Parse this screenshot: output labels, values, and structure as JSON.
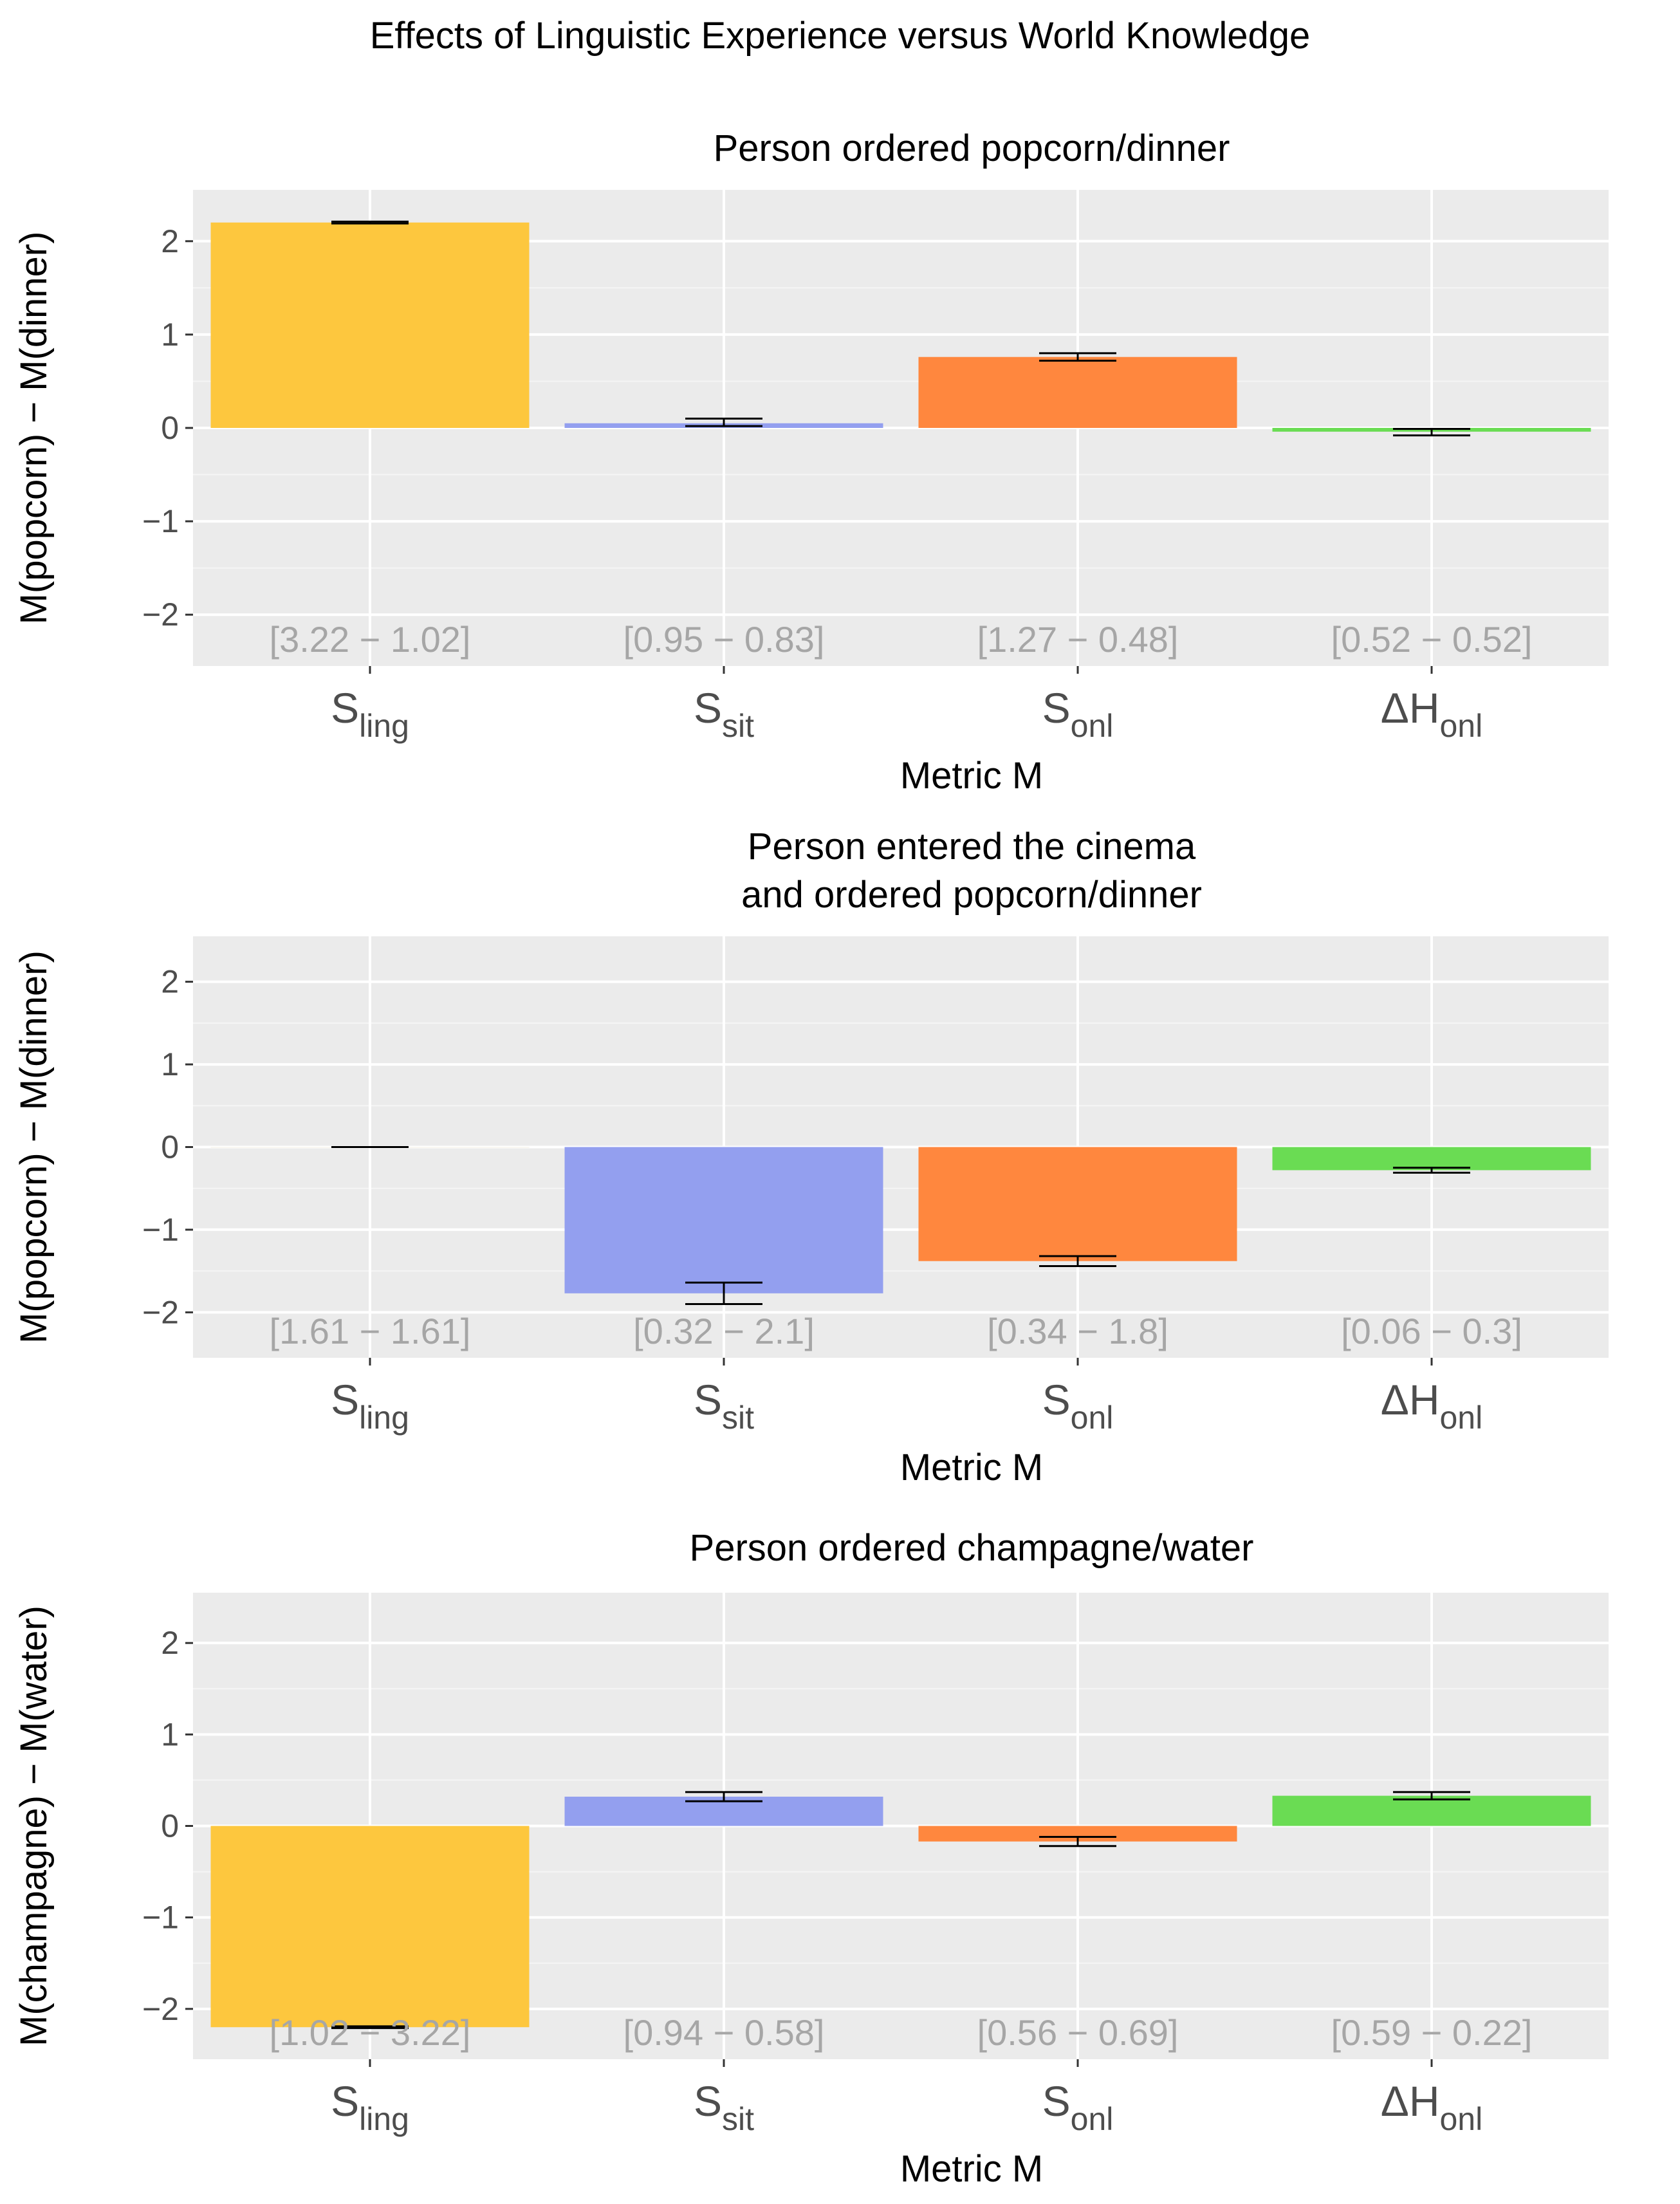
{
  "figure_title": "Effects of Linguistic Experience versus World Knowledge",
  "chart_data": [
    {
      "type": "bar",
      "title": "Person ordered popcorn/dinner",
      "title_lines": [
        "Person ordered popcorn/dinner"
      ],
      "ylabel": "M(popcorn) − M(dinner)",
      "xlabel": "Metric M",
      "ylim": [
        -2.55,
        2.55
      ],
      "yticks": [
        -2,
        -1,
        0,
        1,
        2
      ],
      "yticklabels": [
        "−2",
        "−1",
        "0",
        "1",
        "2"
      ],
      "categories": [
        {
          "main": "S",
          "sub": "ling"
        },
        {
          "main": "S",
          "sub": "sit"
        },
        {
          "main": "S",
          "sub": "onl"
        },
        {
          "main": "ΔH",
          "sub": "onl"
        }
      ],
      "values": [
        2.2,
        0.05,
        0.76,
        -0.04
      ],
      "error_low": [
        2.19,
        0.02,
        0.72,
        -0.08
      ],
      "error_high": [
        2.21,
        0.1,
        0.8,
        -0.01
      ],
      "colors": [
        "#FDC73E",
        "#939FEF",
        "#FF873E",
        "#6ADC53"
      ],
      "annotations": [
        "[3.22 − 1.02]",
        "[0.95 − 0.83]",
        "[1.27 − 0.48]",
        "[0.52 − 0.52]"
      ]
    },
    {
      "type": "bar",
      "title": "Person entered the cinema and ordered popcorn/dinner",
      "title_lines": [
        "Person entered the cinema",
        "and ordered popcorn/dinner"
      ],
      "ylabel": "M(popcorn) − M(dinner)",
      "xlabel": "Metric M",
      "ylim": [
        -2.55,
        2.55
      ],
      "yticks": [
        -2,
        -1,
        0,
        1,
        2
      ],
      "yticklabels": [
        "−2",
        "−1",
        "0",
        "1",
        "2"
      ],
      "categories": [
        {
          "main": "S",
          "sub": "ling"
        },
        {
          "main": "S",
          "sub": "sit"
        },
        {
          "main": "S",
          "sub": "onl"
        },
        {
          "main": "ΔH",
          "sub": "onl"
        }
      ],
      "values": [
        0.0,
        -1.77,
        -1.38,
        -0.28
      ],
      "error_low": [
        0.0,
        -1.9,
        -1.44,
        -0.31
      ],
      "error_high": [
        0.0,
        -1.64,
        -1.32,
        -0.25
      ],
      "colors": [
        "#F5F0E6",
        "#939FEF",
        "#FF873E",
        "#6ADC53"
      ],
      "annotations": [
        "[1.61 − 1.61]",
        "[0.32 − 2.1]",
        "[0.34 − 1.8]",
        "[0.06 − 0.3]"
      ]
    },
    {
      "type": "bar",
      "title": "Person ordered champagne/water",
      "title_lines": [
        "Person ordered champagne/water"
      ],
      "ylabel": "M(champagne) − M(water)",
      "xlabel": "Metric M",
      "ylim": [
        -2.55,
        2.55
      ],
      "yticks": [
        -2,
        -1,
        0,
        1,
        2
      ],
      "yticklabels": [
        "−2",
        "−1",
        "0",
        "1",
        "2"
      ],
      "categories": [
        {
          "main": "S",
          "sub": "ling"
        },
        {
          "main": "S",
          "sub": "sit"
        },
        {
          "main": "S",
          "sub": "onl"
        },
        {
          "main": "ΔH",
          "sub": "onl"
        }
      ],
      "values": [
        -2.2,
        0.32,
        -0.17,
        0.33
      ],
      "error_low": [
        -2.21,
        0.27,
        -0.22,
        0.29
      ],
      "error_high": [
        -2.19,
        0.37,
        -0.12,
        0.37
      ],
      "colors": [
        "#FDC73E",
        "#939FEF",
        "#FF873E",
        "#6ADC53"
      ],
      "annotations": [
        "[1.02 − 3.22]",
        "[0.94 − 0.58]",
        "[0.56 − 0.69]",
        "[0.59 − 0.22]"
      ]
    }
  ]
}
